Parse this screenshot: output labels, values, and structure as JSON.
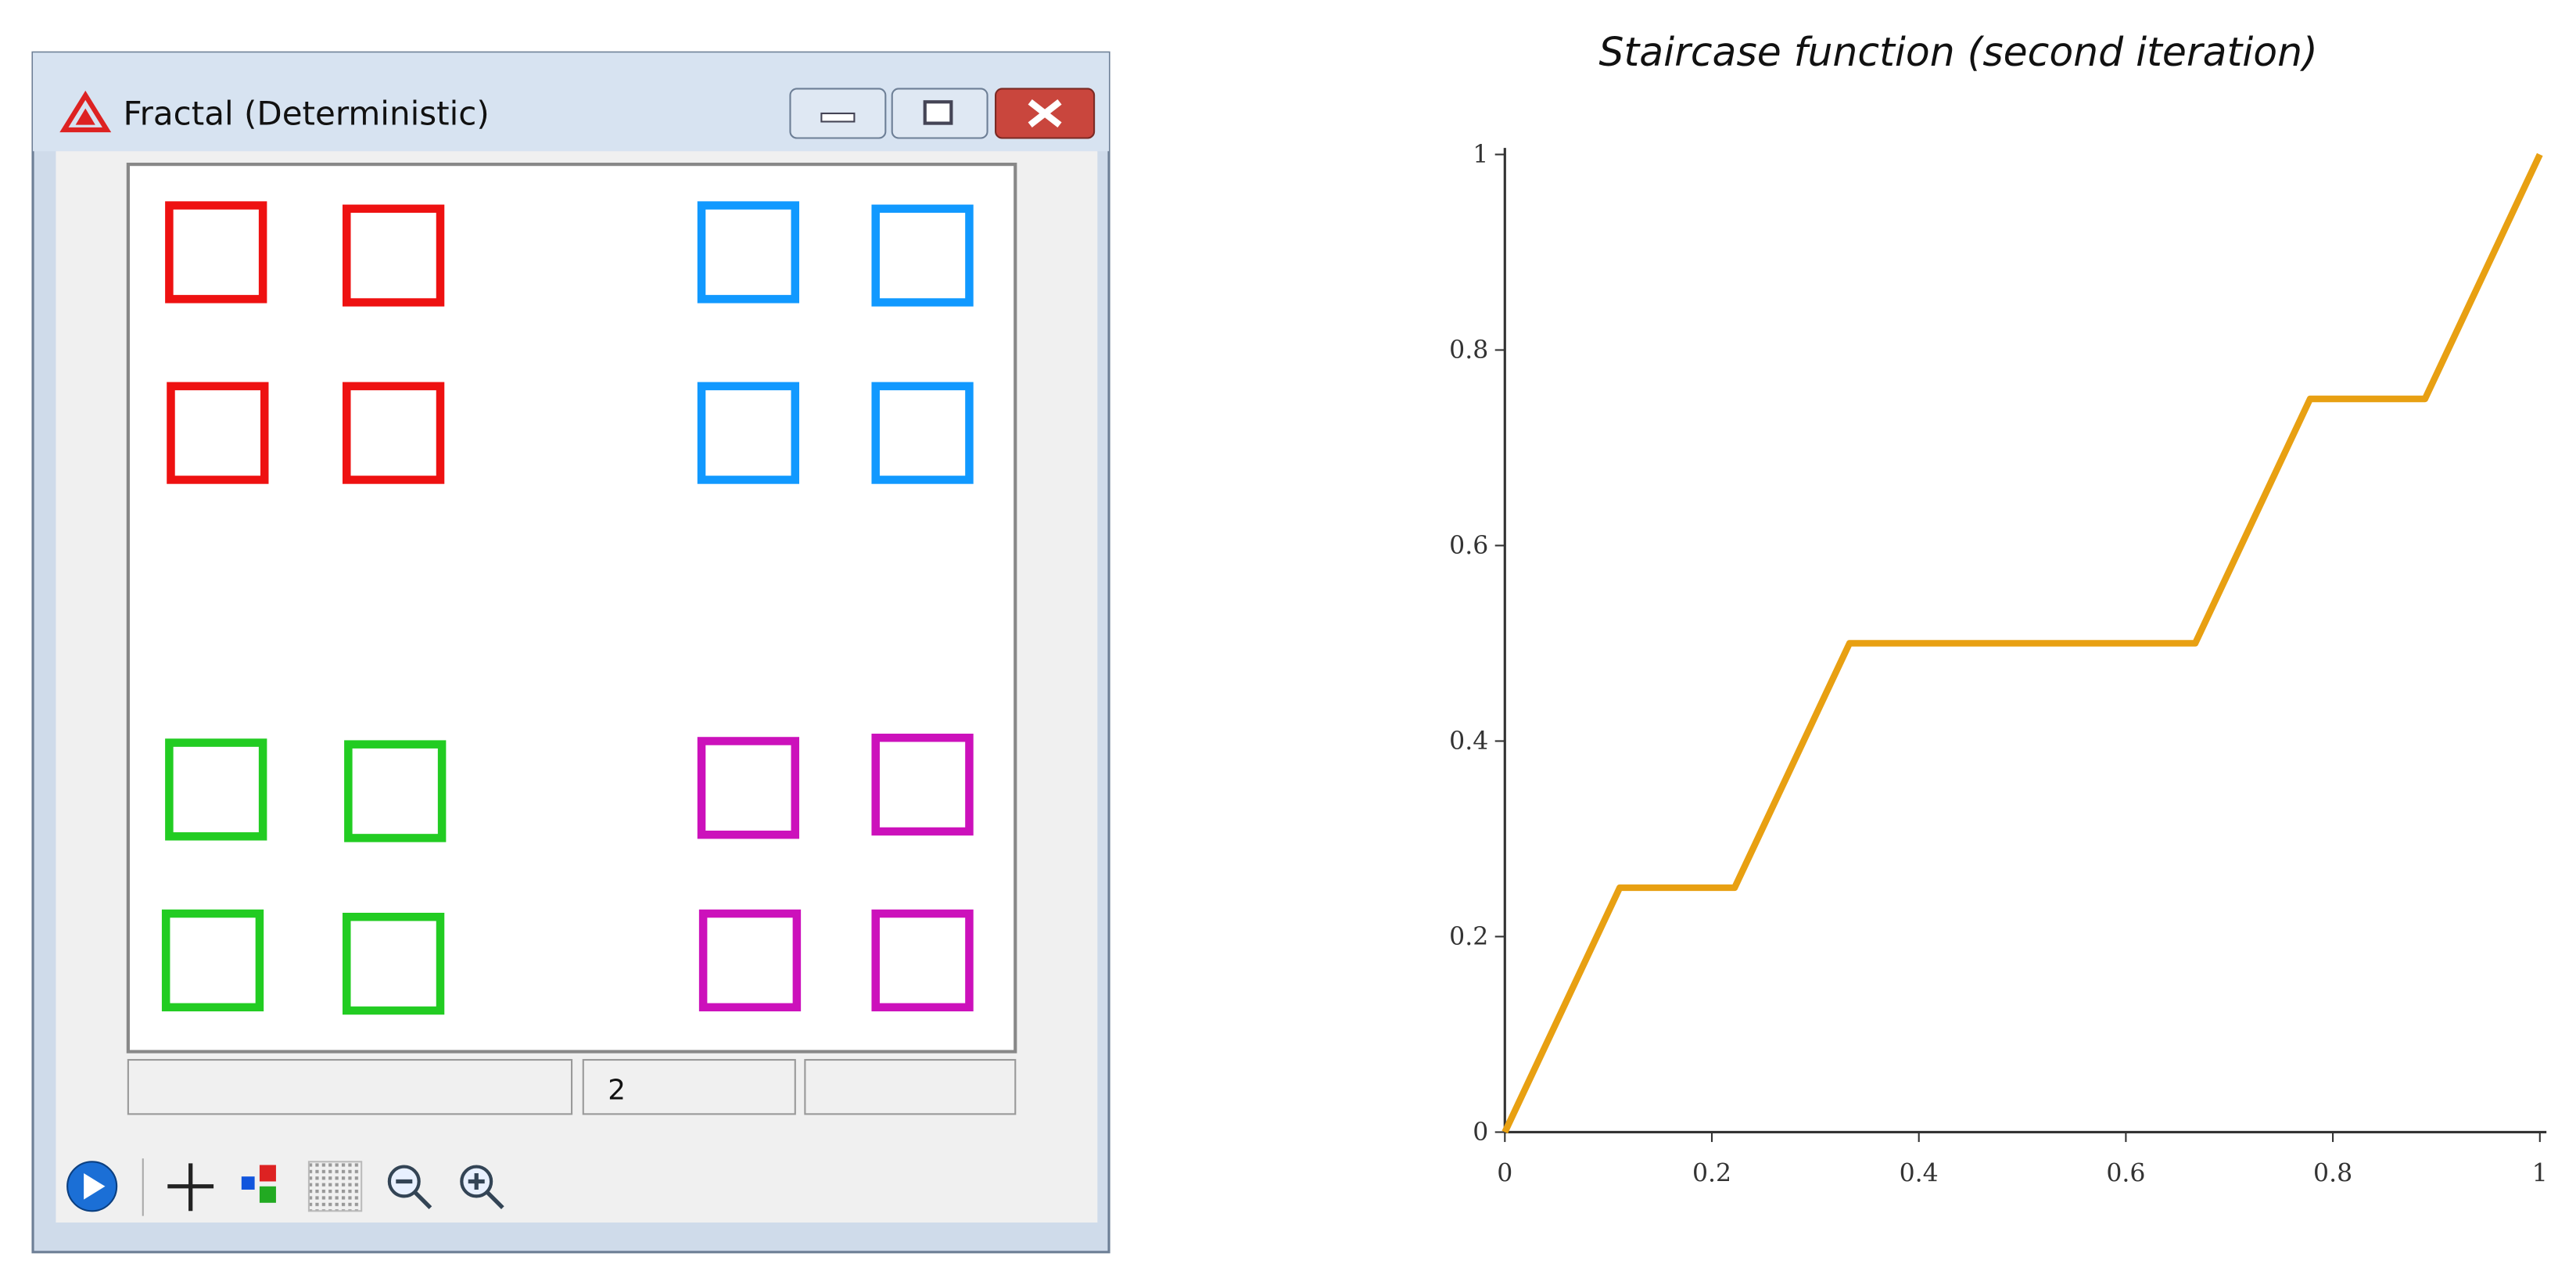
{
  "window": {
    "title": "Fractal (Deterministic)",
    "status": [
      "",
      "2",
      ""
    ]
  },
  "chart_data": {
    "type": "line",
    "title": "Staircase function (second iteration)",
    "x": [
      0,
      0.111,
      0.222,
      0.333,
      0.667,
      0.778,
      0.889,
      1
    ],
    "series": [
      {
        "color": "#e8a012",
        "values": [
          0,
          0.25,
          0.25,
          0.5,
          0.5,
          0.75,
          0.75,
          1
        ]
      }
    ],
    "xlim": [
      0,
      1
    ],
    "ylim": [
      0,
      1
    ],
    "xticks": [
      0,
      0.2,
      0.4,
      0.6,
      0.8,
      1
    ],
    "yticks": [
      0,
      0.2,
      0.4,
      0.6,
      0.8,
      1
    ],
    "grid": false
  }
}
